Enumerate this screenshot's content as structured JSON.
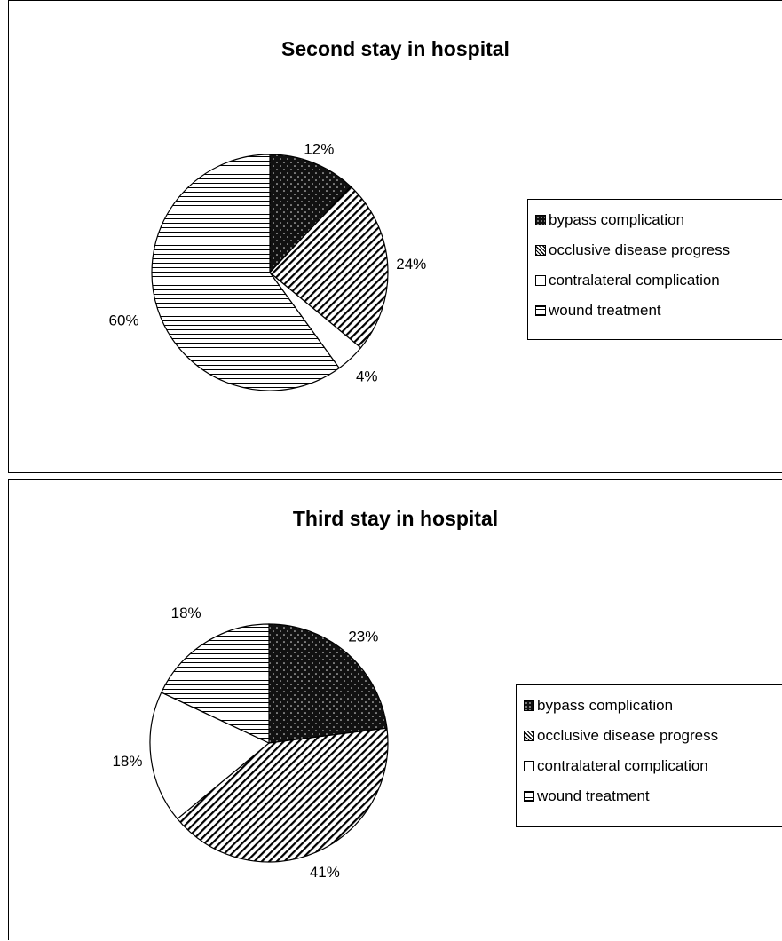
{
  "chart_data": [
    {
      "type": "pie",
      "title": "Second stay in hospital",
      "categories": [
        "bypass complication",
        "occlusive disease progress",
        "contralateral complication",
        "wound treatment"
      ],
      "values": [
        12,
        24,
        4,
        60
      ],
      "value_labels": [
        "12%",
        "24%",
        "4%",
        "60%"
      ],
      "legend_position": "right",
      "fills": [
        "dots",
        "diagonal",
        "blank",
        "horizontal"
      ]
    },
    {
      "type": "pie",
      "title": "Third stay in hospital",
      "categories": [
        "bypass complication",
        "occlusive disease progress",
        "contralateral complication",
        "wound treatment"
      ],
      "values": [
        23,
        41,
        18,
        18
      ],
      "value_labels": [
        "23%",
        "41%",
        "18%",
        "18%"
      ],
      "legend_position": "right",
      "fills": [
        "dots",
        "diagonal",
        "blank",
        "horizontal"
      ]
    }
  ],
  "legend_labels_0": [
    " bypass complication",
    " occlusive disease progress",
    " contralateral complication",
    " wound treatment"
  ],
  "legend_labels_1": [
    "bypass complication",
    "occlusive disease progress",
    "contralateral complication",
    "wound treatment"
  ]
}
